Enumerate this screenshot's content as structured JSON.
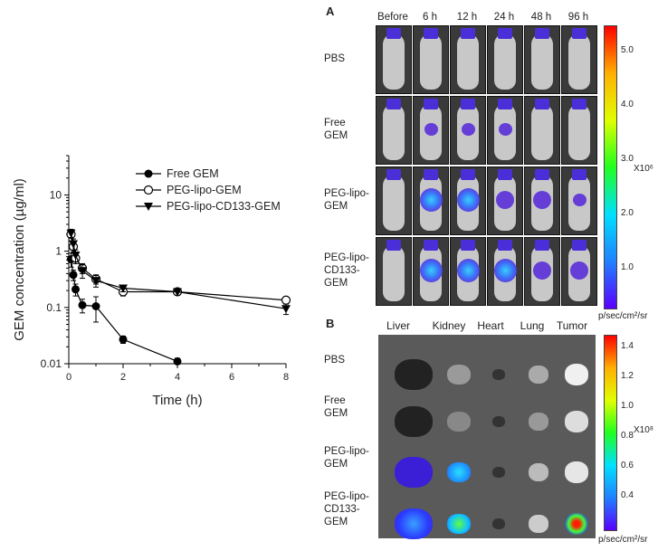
{
  "chart_data": {
    "type": "line",
    "ylabel": "GEM concentration (µg/ml)",
    "xlabel": "Time (h)",
    "yscale": "log",
    "ylim": [
      0.01,
      50
    ],
    "xlim": [
      0,
      8
    ],
    "xticks": [
      "0",
      "2",
      "4",
      "6",
      "8"
    ],
    "yticks": [
      "0.01",
      "0.1",
      "1",
      "10"
    ],
    "legend_position": "top-right",
    "grid": false,
    "series": [
      {
        "name": "Free GEM",
        "marker": "filled-circle",
        "x": [
          0.083,
          0.167,
          0.25,
          0.5,
          1,
          2,
          4
        ],
        "y": [
          0.72,
          0.38,
          0.21,
          0.11,
          0.105,
          0.027,
          0.011
        ],
        "err": [
          0.2,
          0.08,
          0.05,
          0.03,
          0.05,
          0.004,
          0.0015
        ]
      },
      {
        "name": "PEG-lipo-GEM",
        "marker": "open-circle",
        "x": [
          0.083,
          0.167,
          0.25,
          0.5,
          1,
          2,
          4,
          8
        ],
        "y": [
          2.0,
          1.2,
          0.75,
          0.5,
          0.32,
          0.19,
          0.19,
          0.135
        ],
        "err": [
          0.3,
          0.25,
          0.15,
          0.1,
          0.06,
          0.03,
          0.02,
          0.02
        ]
      },
      {
        "name": "PEG-lipo-CD133-GEM",
        "marker": "filled-triangle-down",
        "x": [
          0.083,
          0.167,
          0.25,
          0.5,
          1,
          2,
          4,
          8
        ],
        "y": [
          2.1,
          1.35,
          0.85,
          0.45,
          0.3,
          0.22,
          0.19,
          0.095
        ],
        "err": [
          0.35,
          0.3,
          0.2,
          0.12,
          0.07,
          0.03,
          0.025,
          0.02
        ]
      }
    ]
  },
  "panelA": {
    "letter": "A",
    "columns": [
      "Before",
      "6 h",
      "12 h",
      "24 h",
      "48 h",
      "96 h"
    ],
    "rows": [
      {
        "lines": [
          "PBS"
        ]
      },
      {
        "lines": [
          "Free",
          "GEM"
        ]
      },
      {
        "lines": [
          "PEG-lipo-",
          "GEM"
        ]
      },
      {
        "lines": [
          "PEG-lipo-",
          "CD133-",
          "GEM"
        ]
      }
    ],
    "colorbar": {
      "ticks": [
        "5.0",
        "4.0",
        "3.0",
        "2.0",
        "1.0"
      ],
      "scale": "X10⁶",
      "unit": "p/sec/cm²/sr"
    }
  },
  "panelB": {
    "letter": "B",
    "columns": [
      "Liver",
      "Kidney",
      "Heart",
      "Lung",
      "Tumor"
    ],
    "rows": [
      {
        "lines": [
          "PBS"
        ]
      },
      {
        "lines": [
          "Free",
          "GEM"
        ]
      },
      {
        "lines": [
          "PEG-lipo-",
          "GEM"
        ]
      },
      {
        "lines": [
          "PEG-lipo-",
          "CD133-",
          "GEM"
        ]
      }
    ],
    "colorbar": {
      "ticks": [
        "1.4",
        "1.2",
        "1.0",
        "0.8",
        "0.6",
        "0.4"
      ],
      "scale": "X10⁸",
      "unit": "p/sec/cm²/sr"
    }
  },
  "colors": {
    "signal_low": "#3a1fd6",
    "signal_mid": "#1aa8ff",
    "signal_high": "#ff2a00"
  }
}
